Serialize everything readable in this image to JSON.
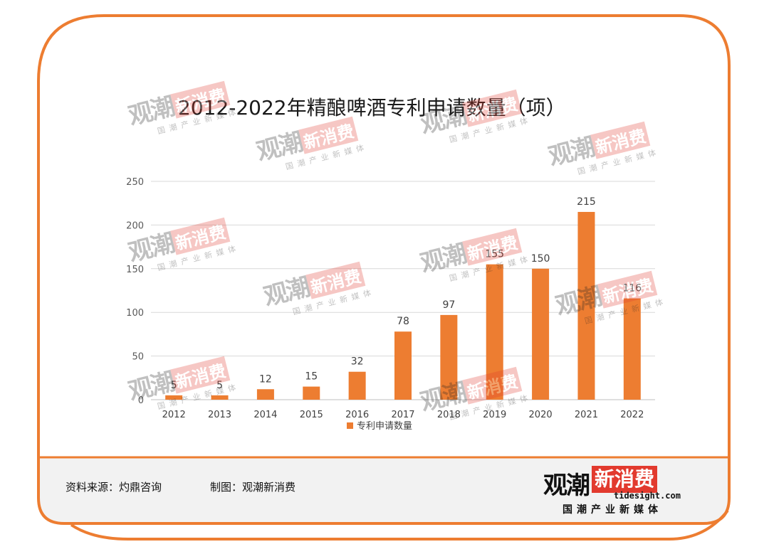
{
  "header": {
    "title": "2012-2022年精酿啤酒专利申请数量（项）"
  },
  "chart_data": {
    "type": "bar",
    "title": "2012-2022年精酿啤酒专利申请数量（项）",
    "categories": [
      "2012",
      "2013",
      "2014",
      "2015",
      "2016",
      "2017",
      "2018",
      "2019",
      "2020",
      "2021",
      "2022"
    ],
    "series": [
      {
        "name": "专利申请数量",
        "values": [
          5,
          5,
          12,
          15,
          32,
          78,
          97,
          155,
          150,
          215,
          116
        ]
      }
    ],
    "yticks": [
      "0",
      "50",
      "100",
      "150",
      "200",
      "250"
    ],
    "ylim": [
      0,
      250
    ],
    "grid": true,
    "legend": "bottom",
    "bar_color": "#ED7D31"
  },
  "footer": {
    "source": "资料来源：灼鼎咨询",
    "made_by": "制图：观潮新消费"
  },
  "logo": {
    "main": "观潮",
    "red": "新消费",
    "url": "tidesight.com",
    "sub": "国潮产业新媒体"
  },
  "colors": {
    "frame": "#ED7D31",
    "footer_bg": "#f2f2f2",
    "bar": "#ED7D31",
    "logo_red": "#e23a2e"
  }
}
